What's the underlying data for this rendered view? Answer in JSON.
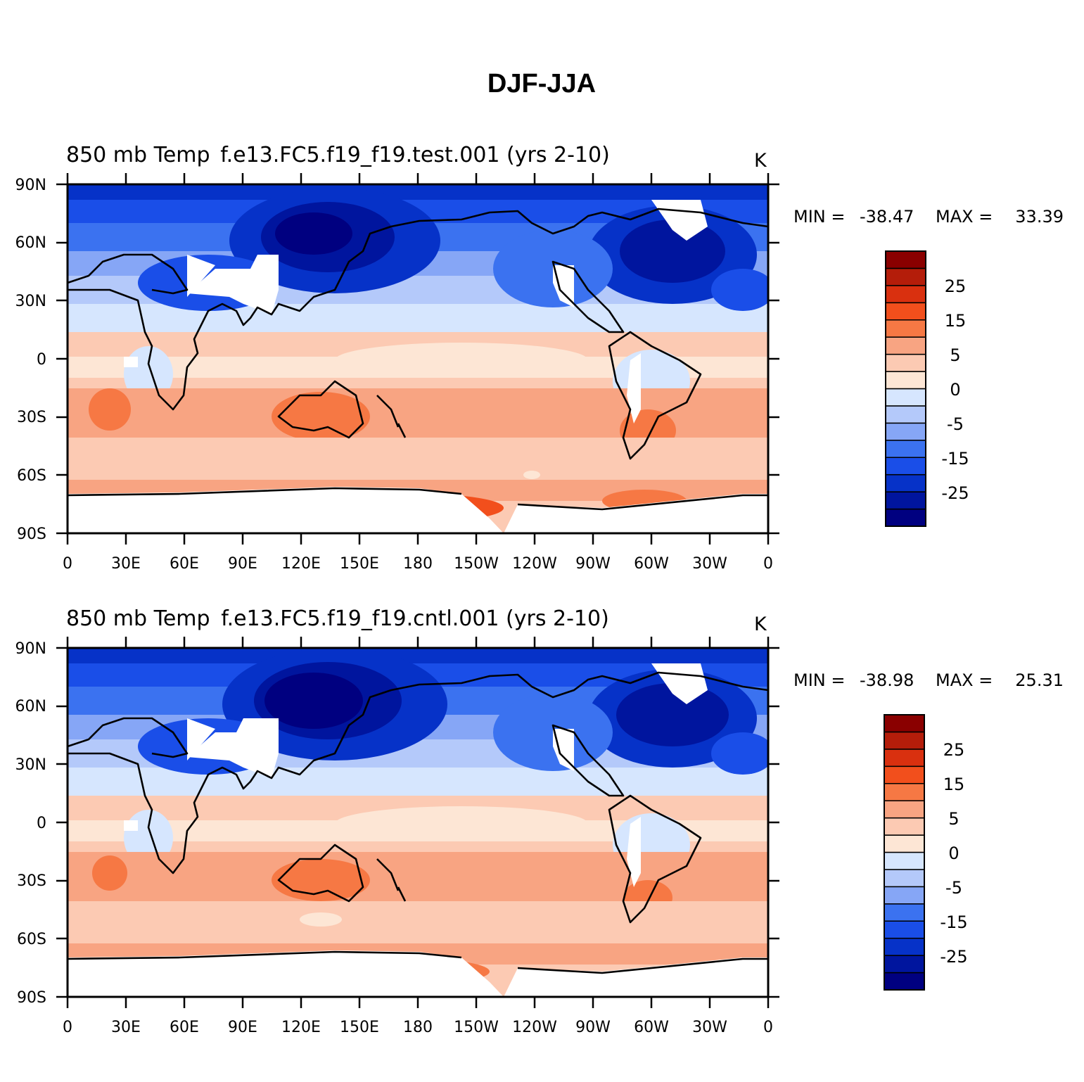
{
  "figure": {
    "title": "DJF-JJA",
    "panels": [
      {
        "left_title": "850 mb Temp",
        "center_title": "f.e13.FC5.f19_f19.test.001 (yrs 2-10)",
        "units": "K",
        "min_label": "MIN =",
        "min_value": "-38.47",
        "max_label": "MAX =",
        "max_value": "33.39"
      },
      {
        "left_title": "850 mb Temp",
        "center_title": "f.e13.FC5.f19_f19.cntl.001 (yrs 2-10)",
        "units": "K",
        "min_label": "MIN =",
        "min_value": "-38.98",
        "max_label": "MAX =",
        "max_value": "25.31"
      }
    ],
    "lon_ticks": [
      "0",
      "30E",
      "60E",
      "90E",
      "120E",
      "150E",
      "180",
      "150W",
      "120W",
      "90W",
      "60W",
      "30W",
      "0"
    ],
    "lat_ticks": [
      "90N",
      "60N",
      "30N",
      "0",
      "30S",
      "60S",
      "90S"
    ],
    "colorbar": {
      "colors": [
        "#000080",
        "#00159e",
        "#0632c8",
        "#1a4ee8",
        "#3b72f0",
        "#86a6f6",
        "#b4c9fa",
        "#d6e6fe",
        "#fde6d5",
        "#fccab3",
        "#f8a482",
        "#f67844",
        "#f24f1c",
        "#d9300f",
        "#b41d0a",
        "#8a0000"
      ],
      "labels": [
        "25",
        "15",
        "5",
        "0",
        "-5",
        "-15",
        "-25"
      ]
    }
  }
}
